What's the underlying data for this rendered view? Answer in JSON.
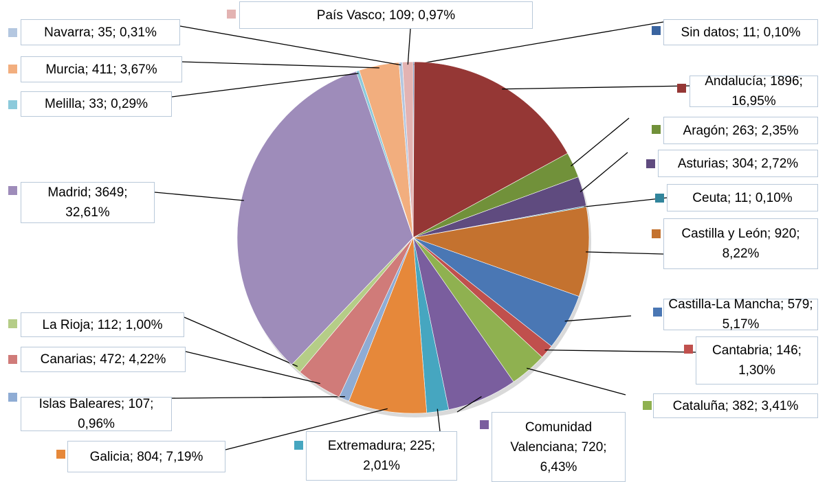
{
  "chart_data": {
    "type": "pie",
    "values": [
      11,
      1896,
      263,
      304,
      11,
      920,
      579,
      146,
      382,
      720,
      225,
      804,
      107,
      472,
      112,
      3649,
      33,
      411,
      35,
      109
    ],
    "value_labels": [
      "Sin datos; 11; 0,10%",
      "Andalucía; 1896; 16,95%",
      "Aragón; 263; 2,35%",
      "Asturias; 304; 2,72%",
      "Ceuta; 11; 0,10%",
      "Castilla y León; 920; 8,22%",
      "Castilla-La Mancha; 579; 5,17%",
      "Cantabria; 146; 1,30%",
      "Cataluña; 382; 3,41%",
      "Comunidad Valenciana; 720; 6,43%",
      "Extremadura; 225; 2,01%",
      "Galicia; 804; 7,19%",
      "Islas Baleares; 107; 0,96%",
      "Canarias; 472; 4,22%",
      "La Rioja; 112; 1,00%",
      "Madrid; 3649; 32,61%",
      "Melilla; 33; 0,29%",
      "Murcia; 411; 3,67%",
      "Navarra; 35; 0,31%",
      "País Vasco; 109; 0,97%"
    ],
    "colors": [
      "#3a64a0",
      "#953735",
      "#71913a",
      "#5f4b7f",
      "#31859c",
      "#c4722f",
      "#4a77b4",
      "#c0504d",
      "#8fb150",
      "#7a5e9e",
      "#46a6c0",
      "#e6883a",
      "#8facd4",
      "#d07b79",
      "#b5cd87",
      "#9e8cba",
      "#8ccadb",
      "#f2ae7e",
      "#b4c7e0",
      "#e3b3b2"
    ]
  }
}
